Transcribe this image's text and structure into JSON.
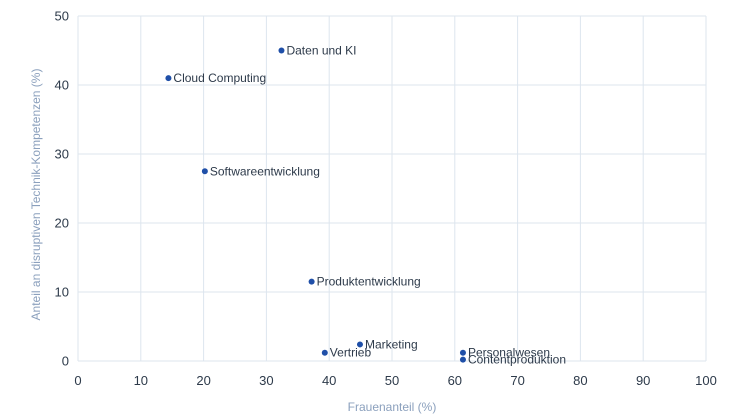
{
  "chart_data": {
    "type": "scatter",
    "title": "",
    "xlabel": "Frauenanteil (%)",
    "ylabel": "Anteil an disruptiven Technik-Kompetenzen (%)",
    "xlim": [
      0,
      100
    ],
    "ylim": [
      0,
      50
    ],
    "xticks": [
      0,
      10,
      20,
      30,
      40,
      50,
      60,
      70,
      80,
      90,
      100
    ],
    "yticks": [
      0,
      10,
      20,
      30,
      40,
      50
    ],
    "grid": true,
    "marker_color": "#1f4fa8",
    "points": [
      {
        "label": "Daten und KI",
        "x": 32.4,
        "y": 45.0
      },
      {
        "label": "Cloud Computing",
        "x": 14.4,
        "y": 41.0
      },
      {
        "label": "Softwareentwicklung",
        "x": 20.2,
        "y": 27.5
      },
      {
        "label": "Produktentwicklung",
        "x": 37.2,
        "y": 11.5
      },
      {
        "label": "Marketing",
        "x": 44.9,
        "y": 2.4
      },
      {
        "label": "Vertrieb",
        "x": 39.3,
        "y": 1.2
      },
      {
        "label": "Personalwesen",
        "x": 61.3,
        "y": 1.2
      },
      {
        "label": "Contentproduktion",
        "x": 61.3,
        "y": 0.2
      }
    ]
  }
}
